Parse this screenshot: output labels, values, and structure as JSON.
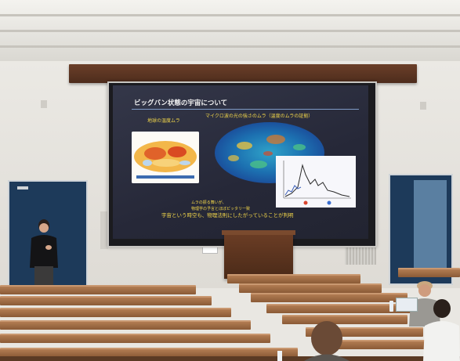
{
  "slide": {
    "title": "ビッグバン状態の宇宙について",
    "label_left": "地球の温度ムラ",
    "label_right": "マイクロ波の光の強さのムラ（温度のムラの証拠）",
    "caption_small_line1": "ムラの振る舞いが、",
    "caption_small_line2": "物理学の予言とほぼピッタリ一致",
    "conclusion": "宇宙という時空も、物理法則にしたがっていることが判明"
  },
  "colors": {
    "slide_background": "#2a2c3c",
    "slide_accent_text": "#f3d74a",
    "title_rule": "#7f9bc7",
    "pelmet_wood": "#5a3422",
    "door_blue": "#1d3a5a",
    "desk_wood": "#a06c45"
  }
}
